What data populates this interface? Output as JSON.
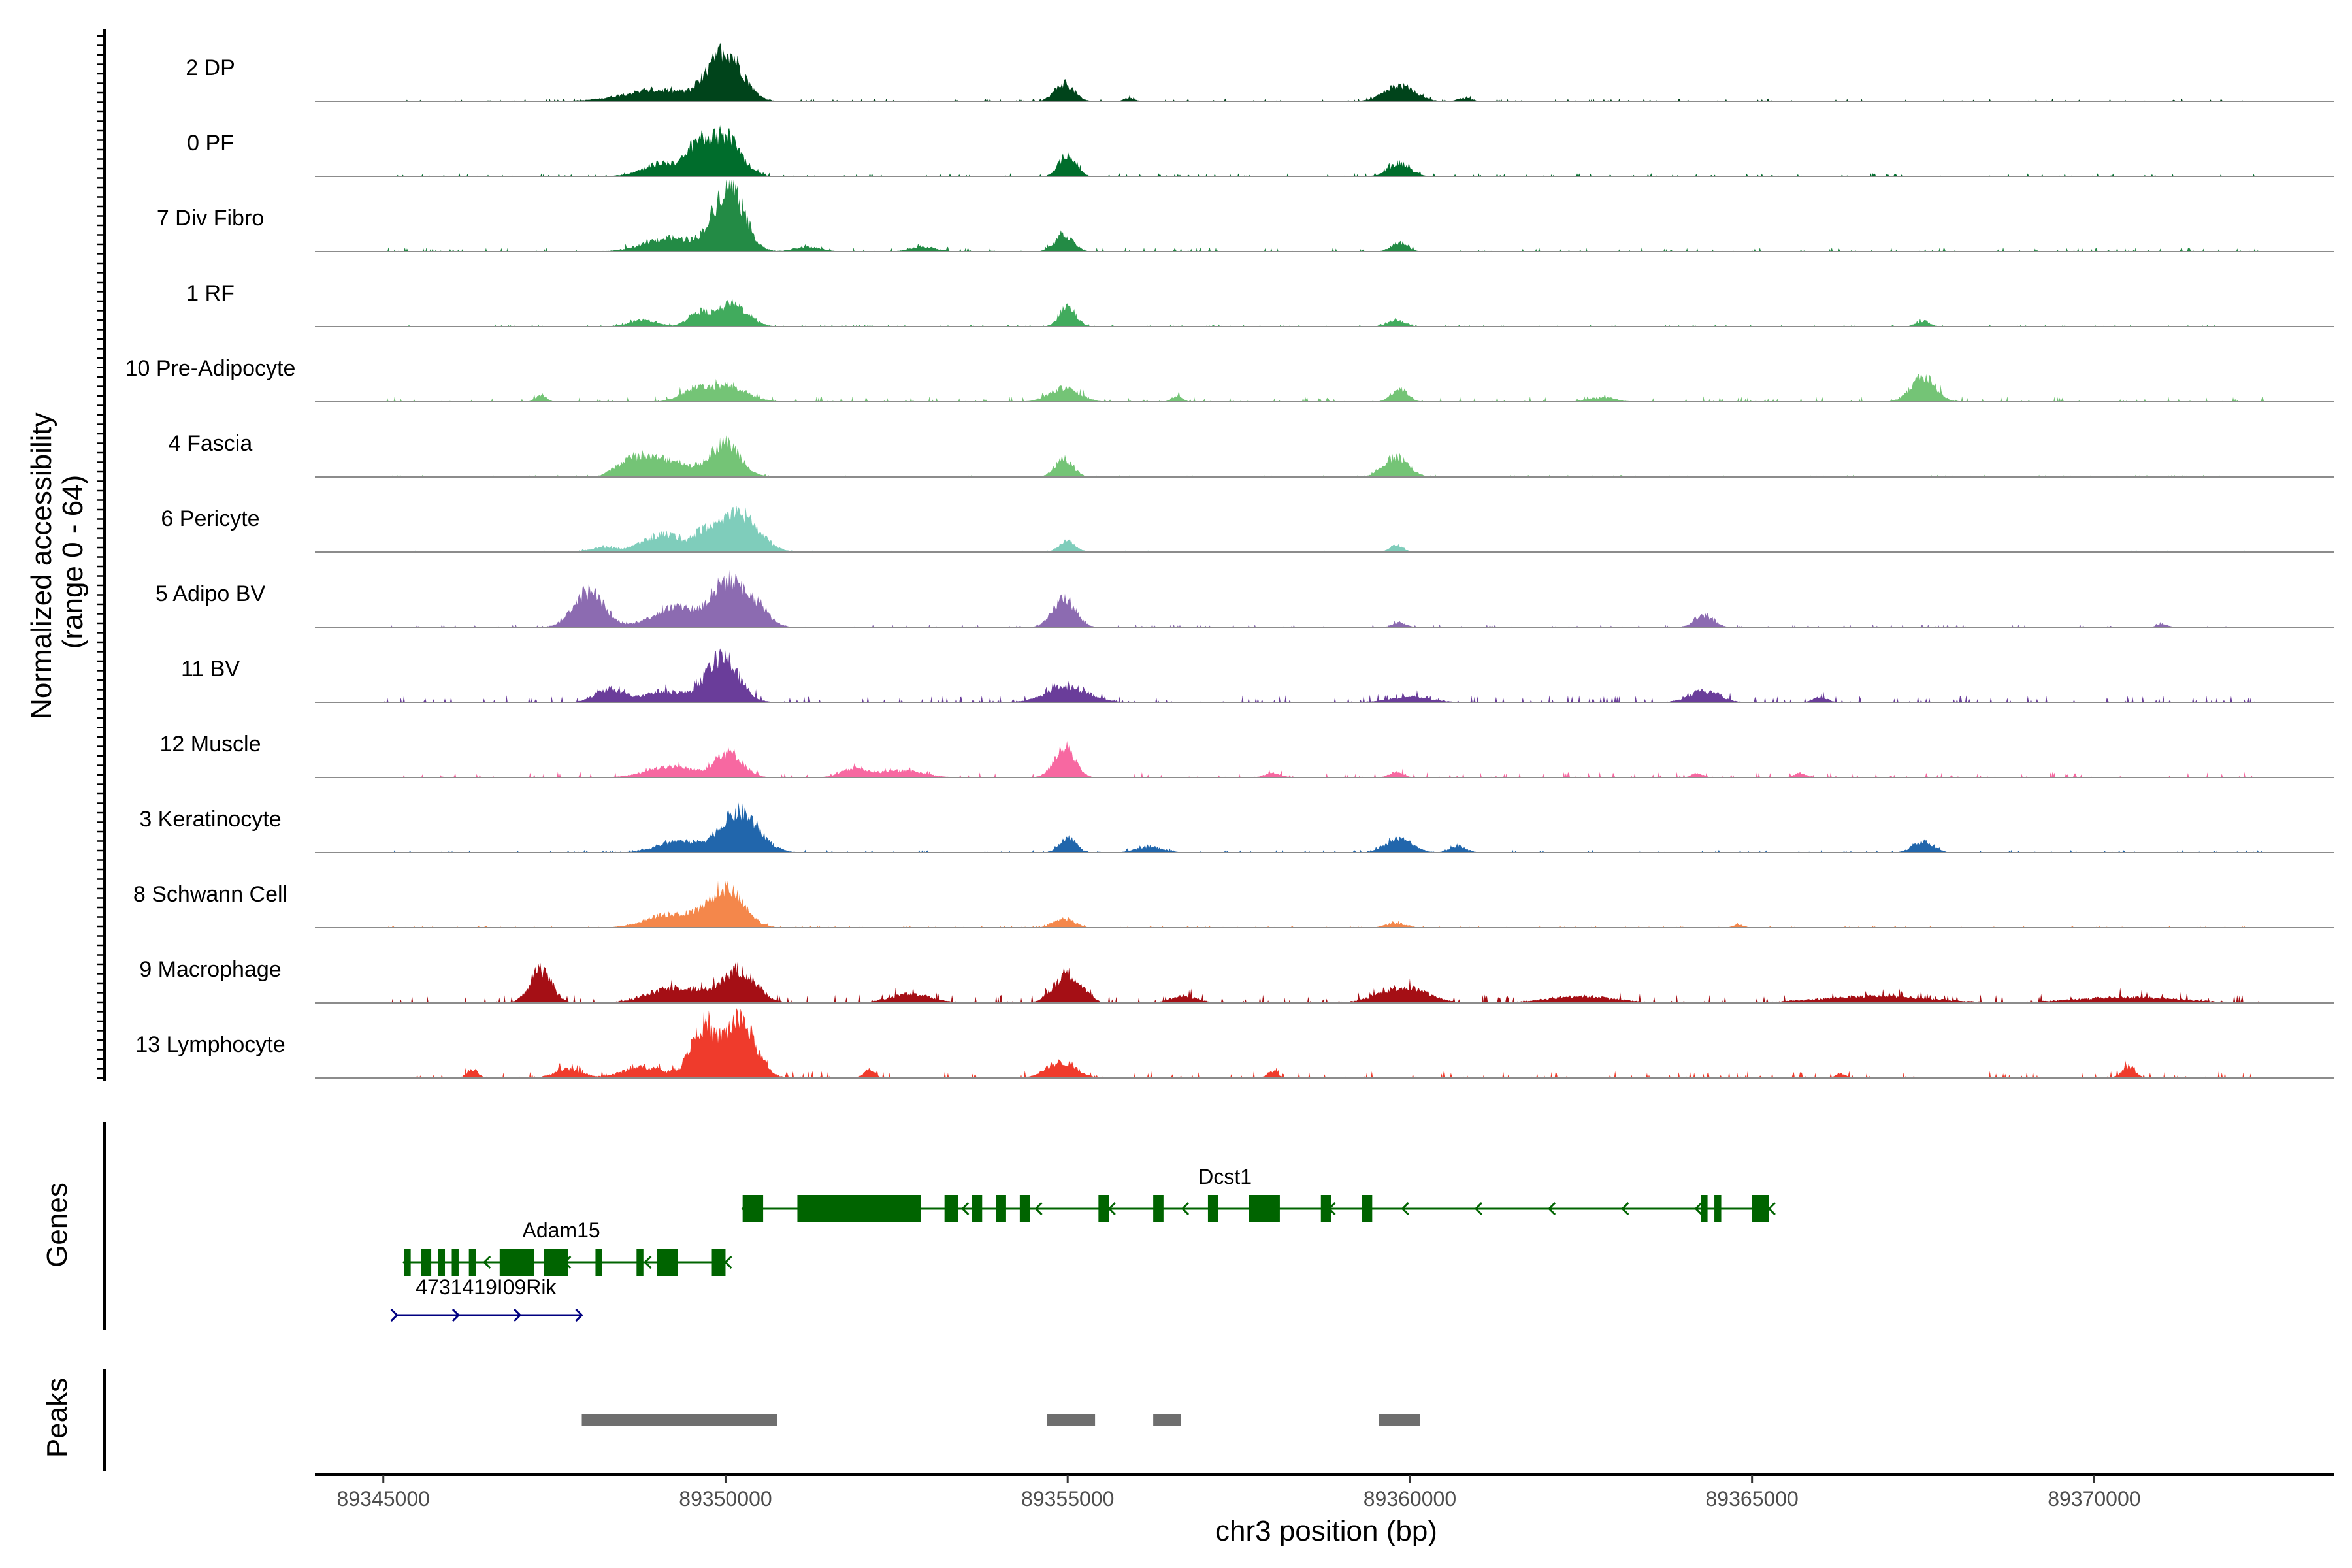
{
  "chart_data": {
    "type": "area",
    "xlabel": "chr3 position (bp)",
    "ylabel": "Normalized accessibility\n(range 0 - 64)",
    "y_range": [
      0,
      64
    ],
    "xlim": [
      89344000,
      89373500
    ],
    "x_ticks": [
      89345000,
      89350000,
      89355000,
      89360000,
      89365000,
      89370000
    ],
    "x_tick_labels": [
      "89345000",
      "89350000",
      "89355000",
      "89360000",
      "89365000",
      "89370000"
    ],
    "grid": false,
    "tracks": [
      {
        "name": "2 DP",
        "color": "#00441b",
        "peaks": [
          [
            89350000,
            44,
            240
          ],
          [
            89349000,
            10,
            500
          ],
          [
            89354950,
            16,
            140
          ],
          [
            89359850,
            14,
            220
          ],
          [
            89360800,
            3,
            100
          ],
          [
            89355900,
            3,
            80
          ]
        ],
        "noise": 1.0
      },
      {
        "name": "0 PF",
        "color": "#006d2c",
        "peaks": [
          [
            89350000,
            36,
            220
          ],
          [
            89349600,
            24,
            150
          ],
          [
            89349100,
            12,
            300
          ],
          [
            89355000,
            20,
            120
          ],
          [
            89359850,
            12,
            160
          ]
        ],
        "noise": 1.2
      },
      {
        "name": "7 Div Fibro",
        "color": "#238b45",
        "peaks": [
          [
            89350050,
            58,
            220
          ],
          [
            89349200,
            12,
            380
          ],
          [
            89354950,
            14,
            140
          ],
          [
            89359850,
            8,
            120
          ],
          [
            89351200,
            4,
            200
          ],
          [
            89352900,
            4,
            200
          ]
        ],
        "noise": 1.5
      },
      {
        "name": "1 RF",
        "color": "#41ab5d",
        "peaks": [
          [
            89350100,
            20,
            220
          ],
          [
            89349600,
            12,
            150
          ],
          [
            89348800,
            6,
            200
          ],
          [
            89355000,
            18,
            120
          ],
          [
            89359800,
            6,
            120
          ],
          [
            89367500,
            5,
            100
          ]
        ],
        "noise": 0.8
      },
      {
        "name": "10 Pre-Adipocyte",
        "color": "#74c476",
        "peaks": [
          [
            89350000,
            14,
            300
          ],
          [
            89349500,
            8,
            200
          ],
          [
            89354950,
            12,
            220
          ],
          [
            89359850,
            12,
            120
          ],
          [
            89367500,
            22,
            180
          ],
          [
            89347300,
            6,
            80
          ],
          [
            89356600,
            5,
            80
          ],
          [
            89362800,
            4,
            200
          ]
        ],
        "noise": 2.0
      },
      {
        "name": "4 Fascia",
        "color": "#74c476",
        "peaks": [
          [
            89350000,
            30,
            220
          ],
          [
            89349100,
            16,
            350
          ],
          [
            89348600,
            12,
            200
          ],
          [
            89354950,
            16,
            130
          ],
          [
            89359800,
            18,
            180
          ]
        ],
        "noise": 0.8
      },
      {
        "name": "6 Pericyte",
        "color": "#7fcdbb",
        "peaks": [
          [
            89350200,
            34,
            280
          ],
          [
            89349100,
            16,
            300
          ],
          [
            89349700,
            14,
            150
          ],
          [
            89348200,
            4,
            200
          ],
          [
            89355000,
            10,
            120
          ],
          [
            89359800,
            6,
            100
          ]
        ],
        "noise": 0.6
      },
      {
        "name": "5 Adipo BV",
        "color": "#8c6bb1",
        "peaks": [
          [
            89348000,
            32,
            220
          ],
          [
            89350000,
            36,
            200
          ],
          [
            89350400,
            22,
            200
          ],
          [
            89349300,
            18,
            350
          ],
          [
            89354950,
            26,
            160
          ],
          [
            89364300,
            10,
            140
          ],
          [
            89359850,
            4,
            100
          ],
          [
            89371000,
            3,
            80
          ]
        ],
        "noise": 1.0
      },
      {
        "name": "11 BV",
        "color": "#6a3d9a",
        "peaks": [
          [
            89349950,
            40,
            240
          ],
          [
            89348300,
            12,
            200
          ],
          [
            89349100,
            10,
            300
          ],
          [
            89360000,
            5,
            300
          ],
          [
            89355000,
            14,
            300
          ],
          [
            89364300,
            10,
            220
          ],
          [
            89366000,
            5,
            100
          ]
        ],
        "noise": 2.5
      },
      {
        "name": "12 Muscle",
        "color": "#f768a1",
        "peaks": [
          [
            89350050,
            22,
            200
          ],
          [
            89349200,
            10,
            350
          ],
          [
            89354950,
            26,
            150
          ],
          [
            89351900,
            8,
            200
          ],
          [
            89352600,
            6,
            300
          ],
          [
            89358000,
            4,
            120
          ],
          [
            89359800,
            5,
            100
          ],
          [
            89364200,
            4,
            80
          ],
          [
            89365700,
            4,
            80
          ]
        ],
        "noise": 2.0
      },
      {
        "name": "3 Keratinocyte",
        "color": "#2166ac",
        "peaks": [
          [
            89350200,
            36,
            280
          ],
          [
            89349300,
            10,
            300
          ],
          [
            89355000,
            14,
            120
          ],
          [
            89359850,
            12,
            200
          ],
          [
            89360700,
            6,
            120
          ],
          [
            89367500,
            10,
            150
          ],
          [
            89356200,
            5,
            200
          ]
        ],
        "noise": 1.0
      },
      {
        "name": "8 Schwann Cell",
        "color": "#f4874b",
        "peaks": [
          [
            89350000,
            34,
            260
          ],
          [
            89349200,
            12,
            350
          ],
          [
            89354950,
            8,
            150
          ],
          [
            89359800,
            4,
            150
          ],
          [
            89364800,
            3,
            80
          ]
        ],
        "noise": 0.7
      },
      {
        "name": "9 Macrophage",
        "color": "#a50f15",
        "peaks": [
          [
            89350200,
            28,
            250
          ],
          [
            89347300,
            30,
            160
          ],
          [
            89349300,
            14,
            400
          ],
          [
            89355000,
            26,
            200
          ],
          [
            89359900,
            14,
            350
          ],
          [
            89352700,
            8,
            300
          ],
          [
            89356700,
            6,
            200
          ],
          [
            89362500,
            6,
            500
          ],
          [
            89366800,
            6,
            800
          ],
          [
            89370500,
            5,
            800
          ]
        ],
        "noise": 3.0
      },
      {
        "name": "13 Lymphocyte",
        "color": "#ef3b2c",
        "peaks": [
          [
            89349650,
            44,
            170
          ],
          [
            89350200,
            52,
            230
          ],
          [
            89348800,
            10,
            300
          ],
          [
            89354900,
            14,
            220
          ],
          [
            89346300,
            8,
            80
          ],
          [
            89347700,
            8,
            200
          ],
          [
            89352100,
            8,
            80
          ],
          [
            89358000,
            6,
            80
          ],
          [
            89370500,
            10,
            100
          ],
          [
            89366300,
            4,
            80
          ]
        ],
        "noise": 2.5
      }
    ],
    "genes_panel_label": "Genes",
    "peaks_panel_label": "Peaks",
    "genes": [
      {
        "name": "Dcst1",
        "strand": "-",
        "row": 0,
        "start": 89350250,
        "end": 89365250,
        "color": "#006400",
        "exons": [
          [
            89350250,
            89350550
          ],
          [
            89351050,
            89352850
          ],
          [
            89353200,
            89353400
          ],
          [
            89353600,
            89353750
          ],
          [
            89353950,
            89354100
          ],
          [
            89354300,
            89354450
          ],
          [
            89355450,
            89355600
          ],
          [
            89356250,
            89356400
          ],
          [
            89357050,
            89357200
          ],
          [
            89357650,
            89358100
          ],
          [
            89358700,
            89358850
          ],
          [
            89359300,
            89359450
          ],
          [
            89364250,
            89364350
          ],
          [
            89364450,
            89364550
          ],
          [
            89365000,
            89365250
          ]
        ]
      },
      {
        "name": "Adam15",
        "strand": "-",
        "row": 1,
        "start": 89345300,
        "end": 89350000,
        "color": "#006400",
        "exons": [
          [
            89345300,
            89345400
          ],
          [
            89345550,
            89345700
          ],
          [
            89345800,
            89345900
          ],
          [
            89346000,
            89346100
          ],
          [
            89346250,
            89346350
          ],
          [
            89346700,
            89347200
          ],
          [
            89347350,
            89347700
          ],
          [
            89348100,
            89348200
          ],
          [
            89348700,
            89348800
          ],
          [
            89349000,
            89349300
          ],
          [
            89349800,
            89350000
          ]
        ]
      },
      {
        "name": "4731419I09Rik",
        "strand": "+",
        "row": 2,
        "start": 89345200,
        "end": 89347900,
        "color": "#000080",
        "exons": []
      }
    ],
    "peak_regions": [
      [
        89347900,
        89350750
      ],
      [
        89354700,
        89355400
      ],
      [
        89356250,
        89356650
      ],
      [
        89359550,
        89360150
      ]
    ]
  }
}
